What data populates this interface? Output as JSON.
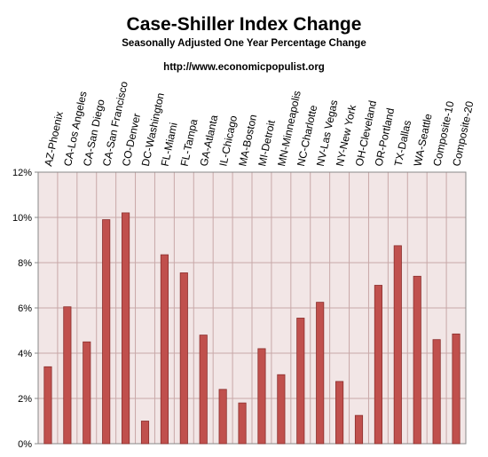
{
  "chart_data": {
    "type": "bar",
    "title": "Case-Shiller Index Change",
    "subtitle": "Seasonally Adjusted One Year Percentage Change",
    "source": "http://www.economicpopulist.org",
    "categories": [
      "AZ-Phoenix",
      "CA-Los Angeles",
      "CA-San Diego",
      "CA-San Francisco",
      "CO-Denver",
      "DC-Washington",
      "FL-Miami",
      "FL-Tampa",
      "GA-Atlanta",
      "IL-Chicago",
      "MA-Boston",
      "MI-Detroit",
      "MN-Minneapolis",
      "NC-Charlotte",
      "NV-Las Vegas",
      "NY-New York",
      "OH-Cleveland",
      "OR-Portland",
      "TX-Dallas",
      "WA-Seattle",
      "Composite-10",
      "Composite-20"
    ],
    "values": [
      3.4,
      6.05,
      4.5,
      9.9,
      10.2,
      1.0,
      8.35,
      7.55,
      4.8,
      2.4,
      1.8,
      4.2,
      3.05,
      5.55,
      6.25,
      2.75,
      1.25,
      7.0,
      8.75,
      7.4,
      4.6,
      4.85
    ],
    "yticks": [
      "0%",
      "2%",
      "4%",
      "6%",
      "8%",
      "10%",
      "12%"
    ],
    "ylim": [
      0,
      12
    ],
    "grid": true,
    "colors": {
      "bar": "#c0504d",
      "bar_edge": "#8b2e2c",
      "plot_bg": "#f2e6e6",
      "grid": "#c8a8a8",
      "axis": "#888888"
    }
  }
}
